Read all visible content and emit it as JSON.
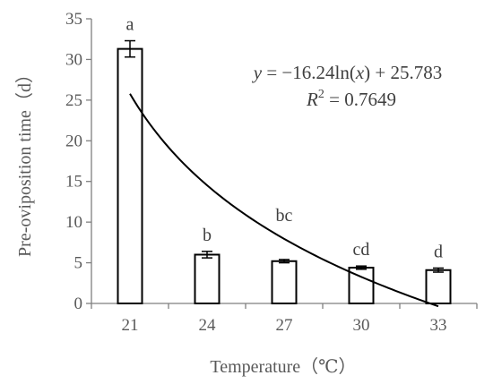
{
  "chart_data": {
    "type": "bar",
    "categories": [
      "21",
      "24",
      "27",
      "30",
      "33"
    ],
    "values": [
      31.3,
      6.0,
      5.2,
      4.4,
      4.1
    ],
    "errors": [
      1.0,
      0.4,
      0.2,
      0.2,
      0.25
    ],
    "significance_letters": [
      "a",
      "b",
      "bc",
      "cd",
      "d"
    ],
    "xlabel": "Temperature（℃）",
    "ylabel": "Pre-oviposition time（d）",
    "ylim": [
      0,
      35
    ],
    "yticks": [
      0,
      5,
      10,
      15,
      20,
      25,
      30,
      35
    ],
    "grid": false,
    "legend": "none",
    "trendline": {
      "type": "logarithmic",
      "a": -16.24,
      "b": 25.783,
      "x_from": 1,
      "x_to": 5,
      "equation": {
        "y": "y",
        "equals_minus": " = −16.24ln(",
        "x": "x",
        "tail": ") + 25.783",
        "R": "R",
        "sup": "2",
        "r2": " = 0.7649"
      }
    },
    "colors": {
      "bar_fill": "#ffffff",
      "bar_stroke": "#000000",
      "axis": "#7f7f7f",
      "text": "#595959"
    }
  }
}
